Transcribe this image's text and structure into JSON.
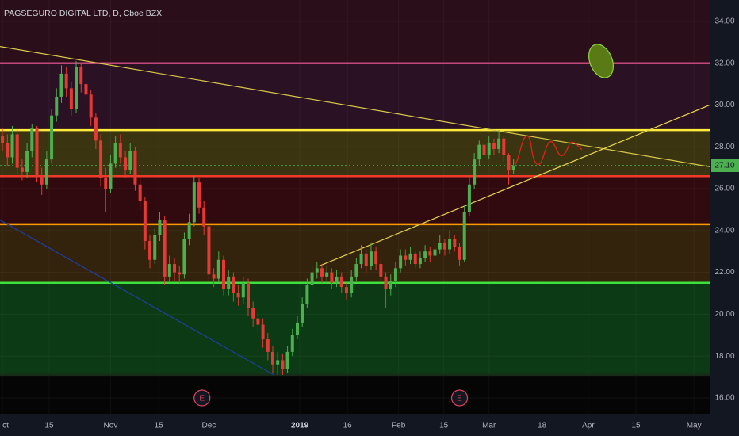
{
  "chart_data": {
    "type": "candlestick",
    "title": "PAGSEGURO DIGITAL LTD, D, Cboe BZX",
    "up_color": "#4caf50",
    "down_color": "#e53935",
    "ylim": [
      15.24,
      35.02
    ],
    "yticks": [
      {
        "value": 16,
        "label": "16.00"
      },
      {
        "value": 18,
        "label": "18.00"
      },
      {
        "value": 20,
        "label": "20.00"
      },
      {
        "value": 22,
        "label": "22.00"
      },
      {
        "value": 24,
        "label": "24.00"
      },
      {
        "value": 26,
        "label": "26.00"
      },
      {
        "value": 28,
        "label": "28.00"
      },
      {
        "value": 30,
        "label": "30.00"
      },
      {
        "value": 32,
        "label": "32.00"
      },
      {
        "value": 34,
        "label": "34.00"
      }
    ],
    "xlim": [
      -0.5,
      143.9
    ],
    "xticks": [
      {
        "value": 0,
        "label": "ct"
      },
      {
        "value": 9.5,
        "label": "15"
      },
      {
        "value": 22,
        "label": "Nov"
      },
      {
        "value": 31.8,
        "label": "15"
      },
      {
        "value": 42,
        "label": "Dec"
      },
      {
        "value": 60.5,
        "label": "2019"
      },
      {
        "value": 70.2,
        "label": "16"
      },
      {
        "value": 80.6,
        "label": "Feb"
      },
      {
        "value": 89.8,
        "label": "15"
      },
      {
        "value": 99,
        "label": "Mar"
      },
      {
        "value": 109.8,
        "label": "18"
      },
      {
        "value": 119.2,
        "label": "Apr"
      },
      {
        "value": 128.9,
        "label": "15"
      },
      {
        "value": 140.7,
        "label": "May"
      }
    ],
    "open": [
      28.5,
      28.2,
      27.5,
      28.6,
      27.0,
      26.8,
      27.8,
      28.9,
      26.6,
      26.2,
      27.4,
      29.5,
      30.4,
      31.5,
      30.8,
      29.8,
      31.8,
      31.0,
      30.5,
      29.4,
      28.3,
      26.5,
      26.0,
      27.2,
      28.2,
      27.5,
      26.9,
      27.8,
      26.2,
      25.4,
      23.5,
      22.6,
      23.8,
      24.5,
      21.8,
      22.4,
      22.0,
      21.9,
      23.6,
      24.4,
      26.3,
      25.1,
      24.2,
      21.9,
      21.7,
      22.6,
      21.2,
      21.8,
      21.0,
      20.8,
      21.5,
      20.3,
      19.8,
      19.5,
      18.8,
      18.2,
      17.6,
      17.8,
      17.4,
      18.2,
      19.0,
      19.6,
      20.5,
      21.4,
      22.0,
      22.2,
      21.8,
      22.0,
      21.5,
      21.8,
      21.3,
      21.0,
      21.8,
      22.4,
      22.9,
      22.3,
      23.0,
      22.4,
      21.8,
      21.2,
      21.6,
      22.2,
      22.8,
      22.6,
      22.9,
      22.4,
      22.7,
      23.0,
      22.8,
      23.1,
      23.4,
      23.1,
      23.6,
      23.2,
      22.6,
      24.9,
      26.2,
      27.4,
      28.1,
      27.6,
      28.2,
      27.9,
      28.4,
      27.6,
      26.9
    ],
    "high": [
      28.9,
      28.6,
      29.0,
      28.9,
      27.4,
      28.2,
      29.1,
      29.0,
      27.0,
      27.8,
      29.8,
      30.8,
      31.9,
      31.8,
      31.1,
      32.1,
      32.0,
      31.3,
      30.7,
      29.6,
      28.6,
      27.0,
      27.6,
      28.5,
      28.6,
      27.8,
      28.2,
      28.0,
      26.5,
      25.6,
      23.8,
      24.1,
      24.9,
      24.7,
      22.8,
      22.7,
      22.3,
      23.9,
      24.8,
      26.6,
      26.5,
      25.4,
      24.4,
      22.2,
      23.0,
      22.8,
      22.1,
      22.0,
      21.4,
      21.8,
      21.7,
      20.6,
      20.1,
      19.8,
      19.1,
      18.5,
      18.2,
      18.1,
      18.5,
      19.3,
      19.9,
      20.8,
      21.7,
      22.3,
      22.5,
      22.4,
      22.3,
      22.2,
      22.1,
      22.0,
      21.5,
      22.1,
      22.7,
      23.3,
      23.1,
      23.4,
      23.2,
      22.6,
      22.0,
      21.9,
      22.5,
      23.1,
      23.1,
      23.2,
      23.0,
      23.0,
      23.3,
      23.2,
      23.4,
      23.8,
      23.6,
      24.0,
      23.8,
      23.4,
      25.2,
      26.6,
      27.7,
      28.3,
      28.3,
      28.5,
      28.4,
      28.8,
      28.5,
      27.7,
      27.4
    ],
    "low": [
      27.8,
      27.1,
      27.2,
      26.6,
      26.4,
      26.5,
      27.5,
      26.3,
      25.7,
      26.0,
      27.2,
      29.2,
      30.1,
      30.4,
      29.5,
      29.6,
      30.6,
      30.1,
      29.0,
      27.9,
      26.1,
      24.9,
      25.8,
      27.0,
      27.2,
      26.5,
      26.7,
      25.9,
      25.0,
      23.1,
      22.2,
      22.4,
      23.5,
      21.4,
      21.5,
      21.6,
      21.5,
      21.7,
      23.3,
      24.2,
      24.8,
      23.8,
      21.5,
      21.3,
      21.5,
      20.9,
      20.9,
      20.6,
      20.4,
      20.5,
      19.9,
      19.4,
      19.1,
      18.4,
      17.8,
      17.2,
      17.1,
      17.1,
      17.2,
      18.0,
      18.8,
      19.4,
      20.3,
      21.2,
      21.7,
      21.5,
      21.6,
      21.2,
      21.3,
      21.0,
      20.7,
      20.8,
      21.6,
      22.2,
      22.0,
      22.1,
      22.1,
      21.4,
      20.3,
      20.9,
      21.3,
      22.0,
      22.3,
      22.4,
      22.2,
      22.2,
      22.5,
      22.5,
      22.6,
      22.9,
      22.8,
      22.9,
      23.0,
      22.3,
      22.5,
      24.7,
      26.0,
      27.1,
      27.3,
      27.4,
      27.6,
      27.7,
      27.3,
      26.2,
      26.7
    ],
    "close": [
      28.2,
      27.5,
      28.6,
      27.0,
      26.8,
      27.8,
      28.9,
      26.6,
      26.2,
      27.4,
      29.5,
      30.4,
      31.5,
      30.8,
      29.8,
      31.8,
      31.0,
      30.5,
      29.4,
      28.3,
      26.5,
      26.0,
      27.2,
      28.2,
      27.5,
      26.9,
      27.8,
      26.2,
      25.4,
      23.5,
      22.6,
      23.8,
      24.5,
      21.8,
      22.4,
      22.0,
      21.9,
      23.6,
      24.4,
      26.3,
      25.1,
      24.2,
      21.9,
      21.7,
      22.6,
      21.2,
      21.8,
      21.0,
      20.8,
      21.5,
      20.3,
      19.8,
      19.5,
      18.8,
      18.2,
      17.6,
      17.8,
      17.4,
      18.2,
      19.0,
      19.6,
      20.5,
      21.4,
      22.0,
      22.2,
      21.8,
      22.0,
      21.5,
      21.8,
      21.3,
      21.0,
      21.8,
      22.4,
      22.9,
      22.3,
      23.0,
      22.4,
      21.8,
      21.2,
      21.6,
      22.2,
      22.8,
      22.6,
      22.9,
      22.4,
      22.7,
      23.0,
      22.8,
      23.1,
      23.4,
      23.1,
      23.6,
      23.2,
      22.6,
      24.9,
      26.2,
      27.4,
      28.1,
      27.6,
      28.2,
      27.9,
      28.4,
      27.6,
      26.9,
      27.1
    ],
    "above_fill": "#2a0f1a",
    "levels": [
      {
        "value": 32,
        "color": "#c2477a",
        "fill": "#2b1124"
      },
      {
        "value": 28.8,
        "color": "#ffeb3b",
        "fill": "#3a3510"
      },
      {
        "value": 26.6,
        "color": "#f23a2a",
        "fill": "#300a0e"
      },
      {
        "value": 24.3,
        "color": "#ff9800",
        "fill": "#33230c"
      },
      {
        "value": 21.5,
        "color": "#3ce03c",
        "fill": "#0c3a14"
      },
      {
        "value": 17.1,
        "color": "#1a2a1a",
        "fill": "#050505"
      }
    ],
    "last_price": {
      "value": 27.1,
      "label": "27.10",
      "color": "#4caf50"
    },
    "trendlines": [
      {
        "color": "#d8c94a",
        "x": [
          -0.5,
          143.9
        ],
        "y": [
          32.8,
          27.05
        ]
      },
      {
        "color": "#1d3fa8",
        "x": [
          -0.5,
          55.2
        ],
        "y": [
          24.5,
          17.1
        ]
      },
      {
        "color": "#e6d34a",
        "x": [
          64.4,
          143.9
        ],
        "y": [
          22.3,
          30.0
        ]
      }
    ],
    "events": [
      {
        "x": 40.6,
        "label": "E"
      },
      {
        "x": 93,
        "label": "E"
      }
    ]
  }
}
